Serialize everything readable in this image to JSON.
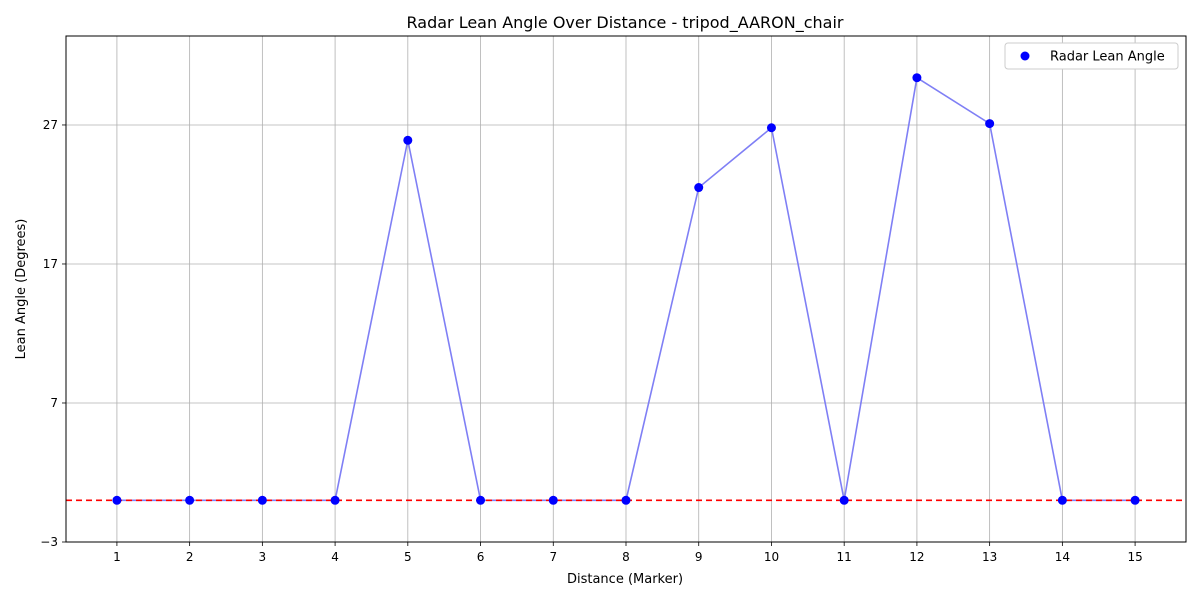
{
  "chart_data": {
    "type": "scatter",
    "title": "Radar Lean Angle Over Distance - tripod_AARON_chair",
    "xlabel": "Distance (Marker)",
    "ylabel": "Lean Angle (Degrees)",
    "x": [
      1,
      2,
      3,
      4,
      5,
      6,
      7,
      8,
      9,
      10,
      11,
      12,
      13,
      14,
      15
    ],
    "x_tick_labels": [
      "1",
      "2",
      "3",
      "4",
      "5",
      "6",
      "7",
      "8",
      "9",
      "10",
      "11",
      "12",
      "13",
      "14",
      "15"
    ],
    "xlim": [
      0.3,
      15.7
    ],
    "y_ticks": [
      -3,
      7,
      17,
      27
    ],
    "y_tick_labels": [
      "−3",
      "7",
      "17",
      "27"
    ],
    "ylim": [
      -3,
      33.4
    ],
    "series": [
      {
        "name": "Radar Lean Angle",
        "values": [
          0,
          0,
          0,
          0,
          25.9,
          0,
          0,
          0,
          22.5,
          26.8,
          0,
          30.4,
          27.1,
          0,
          0
        ],
        "marker_color": "#0000ff",
        "line_color": "#7f7ff5"
      }
    ],
    "reference_line": {
      "y": 0,
      "color": "#ff0000",
      "style": "dashed"
    },
    "grid": true,
    "legend": {
      "position": "top-right",
      "entries": [
        "Radar Lean Angle"
      ]
    }
  }
}
